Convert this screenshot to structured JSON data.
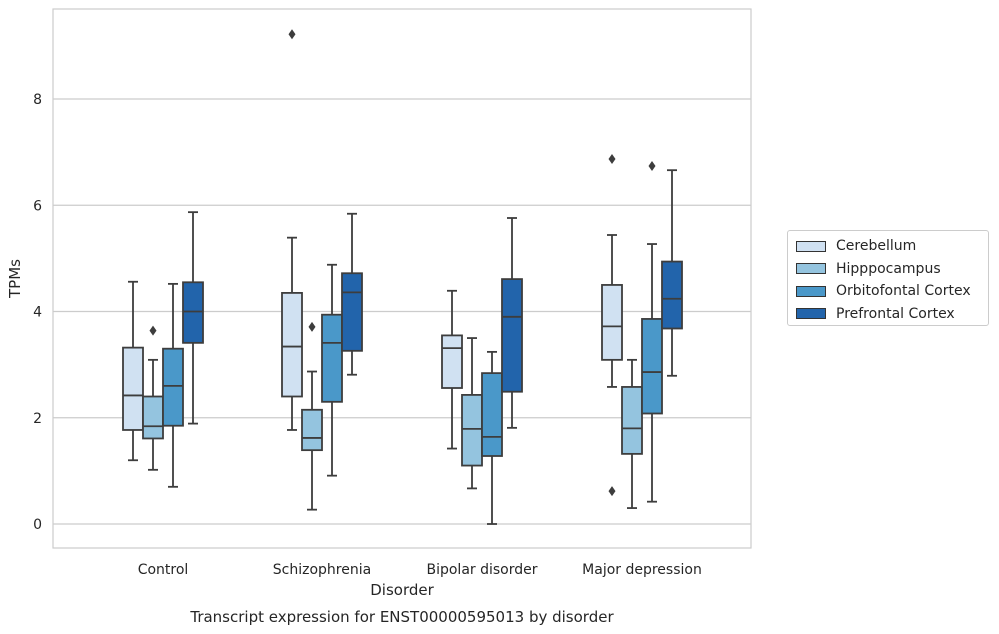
{
  "chart_data": {
    "type": "box",
    "title": "Transcript expression for ENST00000595013 by disorder",
    "xlabel": "Disorder",
    "ylabel": "TPMs",
    "ylim": [
      -0.45,
      9.7
    ],
    "yticks": [
      "0",
      "2",
      "4",
      "6",
      "8"
    ],
    "grid": true,
    "legend_position": "right",
    "categories": [
      "Control",
      "Schizophrenia",
      "Bipolar disorder",
      "Major depression"
    ],
    "series": [
      {
        "name": "Cerebellum",
        "color": "#d0e1f2",
        "boxes": [
          {
            "whislo": 1.2,
            "q1": 1.77,
            "med": 2.42,
            "q3": 3.32,
            "whishi": 4.56,
            "fliers": []
          },
          {
            "whislo": 1.77,
            "q1": 2.4,
            "med": 3.34,
            "q3": 4.35,
            "whishi": 5.39,
            "fliers": [
              9.22
            ]
          },
          {
            "whislo": 1.42,
            "q1": 2.56,
            "med": 3.31,
            "q3": 3.55,
            "whishi": 4.39,
            "fliers": []
          },
          {
            "whislo": 2.58,
            "q1": 3.09,
            "med": 3.72,
            "q3": 4.5,
            "whishi": 5.44,
            "fliers": [
              6.87,
              0.62
            ]
          }
        ]
      },
      {
        "name": "Hipppocampus",
        "color": "#94c4df",
        "boxes": [
          {
            "whislo": 1.02,
            "q1": 1.61,
            "med": 1.84,
            "q3": 2.4,
            "whishi": 3.09,
            "fliers": [
              3.64
            ]
          },
          {
            "whislo": 0.27,
            "q1": 1.39,
            "med": 1.62,
            "q3": 2.15,
            "whishi": 2.87,
            "fliers": [
              3.71
            ]
          },
          {
            "whislo": 0.67,
            "q1": 1.1,
            "med": 1.79,
            "q3": 2.43,
            "whishi": 3.5,
            "fliers": []
          },
          {
            "whislo": 0.3,
            "q1": 1.32,
            "med": 1.8,
            "q3": 2.58,
            "whishi": 3.09,
            "fliers": []
          }
        ]
      },
      {
        "name": "Orbitofontal Cortex",
        "color": "#4a98c9",
        "boxes": [
          {
            "whislo": 0.7,
            "q1": 1.85,
            "med": 2.6,
            "q3": 3.3,
            "whishi": 4.52,
            "fliers": []
          },
          {
            "whislo": 0.91,
            "q1": 2.3,
            "med": 3.41,
            "q3": 3.94,
            "whishi": 4.88,
            "fliers": []
          },
          {
            "whislo": 0.0,
            "q1": 1.28,
            "med": 1.64,
            "q3": 2.84,
            "whishi": 3.24,
            "fliers": []
          },
          {
            "whislo": 0.42,
            "q1": 2.08,
            "med": 2.86,
            "q3": 3.86,
            "whishi": 5.27,
            "fliers": [
              6.74
            ]
          }
        ]
      },
      {
        "name": "Prefrontal Cortex",
        "color": "#2264ab",
        "boxes": [
          {
            "whislo": 1.89,
            "q1": 3.41,
            "med": 4.0,
            "q3": 4.55,
            "whishi": 5.87,
            "fliers": []
          },
          {
            "whislo": 2.81,
            "q1": 3.26,
            "med": 4.36,
            "q3": 4.72,
            "whishi": 5.84,
            "fliers": []
          },
          {
            "whislo": 1.81,
            "q1": 2.49,
            "med": 3.9,
            "q3": 4.61,
            "whishi": 5.76,
            "fliers": []
          },
          {
            "whislo": 2.79,
            "q1": 3.68,
            "med": 4.24,
            "q3": 4.94,
            "whishi": 6.66,
            "fliers": []
          }
        ]
      }
    ]
  }
}
